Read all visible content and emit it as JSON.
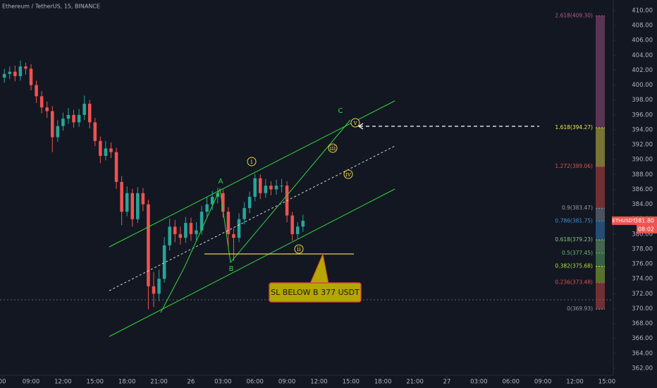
{
  "chart_data": {
    "type": "candlestick",
    "title": "Ethereum / TetherUS, 15, BINANCE",
    "up_color": "#26a69a",
    "down_color": "#ef5350",
    "grid": false,
    "xlim": [
      6.09,
      63.6
    ],
    "ylim": [
      361.05,
      411.42
    ],
    "xticks": [
      {
        "value": 6.3,
        "label": "00"
      },
      {
        "value": 9,
        "label": "09:00"
      },
      {
        "value": 12,
        "label": "12:00"
      },
      {
        "value": 15,
        "label": "15:00"
      },
      {
        "value": 18,
        "label": "18:00"
      },
      {
        "value": 21,
        "label": "21:00"
      },
      {
        "value": 24,
        "label": "26"
      },
      {
        "value": 27,
        "label": "03:00"
      },
      {
        "value": 30,
        "label": "06:00"
      },
      {
        "value": 33,
        "label": "09:00"
      },
      {
        "value": 36,
        "label": "12:00"
      },
      {
        "value": 39,
        "label": "15:00"
      },
      {
        "value": 42,
        "label": "18:00"
      },
      {
        "value": 45,
        "label": "21:00"
      },
      {
        "value": 48,
        "label": "27"
      },
      {
        "value": 51,
        "label": "03:00"
      },
      {
        "value": 54,
        "label": "06:00"
      },
      {
        "value": 57,
        "label": "09:00"
      },
      {
        "value": 60,
        "label": "12:00"
      },
      {
        "value": 63,
        "label": "15:00"
      }
    ],
    "yticks": [
      {
        "value": 362,
        "label": "362.00"
      },
      {
        "value": 364,
        "label": "364.00"
      },
      {
        "value": 366,
        "label": "366.00"
      },
      {
        "value": 368,
        "label": "368.00"
      },
      {
        "value": 370,
        "label": "370.00"
      },
      {
        "value": 372,
        "label": "372.00"
      },
      {
        "value": 374,
        "label": "374.00"
      },
      {
        "value": 376,
        "label": "376.00"
      },
      {
        "value": 378,
        "label": "378.00"
      },
      {
        "value": 380,
        "label": "380.00"
      },
      {
        "value": 382,
        "label": "382.00"
      },
      {
        "value": 384,
        "label": "384.00"
      },
      {
        "value": 386,
        "label": "386.00"
      },
      {
        "value": 388,
        "label": "388.00"
      },
      {
        "value": 390,
        "label": "390.00"
      },
      {
        "value": 392,
        "label": "392.00"
      },
      {
        "value": 394,
        "label": "394.00"
      },
      {
        "value": 396,
        "label": "396.00"
      },
      {
        "value": 398,
        "label": "398.00"
      },
      {
        "value": 400,
        "label": "400.00"
      },
      {
        "value": 402,
        "label": "402.00"
      },
      {
        "value": 404,
        "label": "404.00"
      },
      {
        "value": 406,
        "label": "406.00"
      },
      {
        "value": 408,
        "label": "408.00"
      },
      {
        "value": 410,
        "label": "410.00"
      }
    ],
    "x": [
      6.5,
      7,
      7.5,
      8,
      8.5,
      9,
      9.5,
      10,
      10.5,
      11,
      11.5,
      12,
      12.5,
      13,
      13.5,
      14,
      14.5,
      15,
      15.5,
      16,
      16.5,
      17,
      17.5,
      18,
      18.5,
      19,
      19.5,
      20,
      20.5,
      21,
      21.5,
      22,
      22.5,
      23,
      23.5,
      24,
      24.5,
      25,
      25.5,
      26,
      26.5,
      27,
      27.5,
      28,
      28.5,
      29,
      29.5,
      30,
      30.5,
      31,
      31.5,
      32,
      32.5,
      33,
      33.5,
      34,
      34.5
    ],
    "open": [
      401.0,
      401.5,
      401.8,
      401.2,
      402.5,
      402.2,
      400.0,
      398.5,
      397.0,
      396.5,
      393.0,
      394.5,
      395.5,
      396.0,
      395.0,
      396.0,
      397.5,
      395.0,
      392.5,
      390.5,
      391.5,
      391.0,
      387.0,
      383.0,
      385.5,
      382.0,
      385.5,
      384.0,
      373.0,
      372.0,
      374.0,
      378.5,
      381.0,
      380.0,
      379.5,
      381.5,
      380.0,
      380.5,
      383.0,
      384.0,
      385.0,
      385.5,
      383.0,
      380.0,
      379.5,
      382.0,
      383.5,
      385.0,
      387.5,
      385.5,
      386.5,
      386.0,
      386.5,
      386.5,
      382.5,
      380.0,
      381.0
    ],
    "high": [
      402.2,
      402.5,
      402.6,
      403.3,
      403.0,
      402.8,
      400.6,
      399.2,
      397.8,
      397.2,
      395.3,
      396.3,
      396.9,
      396.7,
      396.8,
      398.6,
      398.0,
      395.6,
      393.1,
      392.5,
      392.3,
      391.6,
      387.8,
      386.4,
      386.1,
      386.3,
      386.2,
      384.6,
      374.9,
      375.2,
      379.6,
      382.1,
      381.9,
      381.0,
      382.3,
      382.2,
      381.6,
      383.8,
      385.0,
      385.8,
      386.2,
      386.0,
      383.6,
      380.8,
      382.8,
      384.3,
      385.7,
      388.1,
      388.0,
      387.4,
      387.1,
      387.3,
      387.4,
      387.1,
      383.0,
      381.6,
      382.6
    ],
    "low": [
      400.3,
      400.8,
      400.5,
      400.6,
      401.4,
      399.3,
      397.6,
      396.2,
      395.6,
      391.0,
      392.4,
      393.9,
      394.8,
      394.3,
      394.4,
      395.3,
      394.2,
      391.8,
      389.5,
      389.9,
      390.2,
      386.1,
      381.2,
      382.4,
      381.0,
      381.5,
      383.1,
      369.9,
      370.2,
      371.0,
      373.5,
      377.8,
      378.9,
      378.6,
      378.8,
      379.1,
      379.2,
      379.9,
      382.3,
      383.2,
      384.1,
      382.2,
      378.3,
      376.4,
      378.9,
      381.3,
      382.8,
      384.4,
      384.7,
      384.9,
      385.2,
      385.3,
      385.6,
      381.6,
      379.1,
      379.4,
      380.3
    ],
    "close": [
      401.5,
      401.8,
      401.2,
      402.5,
      402.2,
      400.0,
      398.5,
      397.0,
      396.5,
      393.0,
      394.5,
      395.5,
      396.0,
      395.0,
      396.0,
      397.5,
      395.0,
      392.5,
      390.5,
      391.5,
      391.0,
      387.0,
      383.0,
      385.5,
      382.0,
      385.5,
      384.0,
      373.0,
      372.0,
      374.0,
      378.5,
      381.0,
      380.0,
      379.5,
      381.5,
      380.0,
      380.5,
      383.0,
      384.0,
      385.0,
      385.5,
      383.0,
      380.0,
      379.5,
      382.0,
      383.5,
      385.0,
      387.5,
      385.5,
      386.5,
      386.0,
      386.5,
      386.5,
      382.5,
      380.0,
      381.0,
      381.8
    ],
    "fib_levels": [
      {
        "label": "2.618(409.30)",
        "value": 409.3,
        "color": "#b05a8e"
      },
      {
        "label": "1.618(394.27)",
        "value": 394.27,
        "color": "#f2e64b"
      },
      {
        "label": "1.272(389.06)",
        "value": 389.06,
        "color": "#e0504b"
      },
      {
        "label": "0.9(383.47)",
        "value": 383.47,
        "color": "#9598a1"
      },
      {
        "label": "0.786(381.75)",
        "value": 381.75,
        "color": "#3f8fd6"
      },
      {
        "label": "0.618(379.23)",
        "value": 379.23,
        "color": "#81c784"
      },
      {
        "label": "0.5(377.45)",
        "value": 377.45,
        "color": "#66bb6a"
      },
      {
        "label": "0.382(375.68)",
        "value": 375.68,
        "color": "#aee23c"
      },
      {
        "label": "0.236(373.48)",
        "value": 373.48,
        "color": "#e0504b"
      },
      {
        "label": "0(369.93)",
        "value": 369.93,
        "color": "#9598a1"
      }
    ],
    "price_tag": {
      "symbol": "ETHUSDT",
      "last_price": {
        "value": 381.8,
        "label": "381.80"
      },
      "countdown": "08:02",
      "color": "#ef5350"
    },
    "annotations": {
      "waves": [
        "i",
        "ii",
        "iii",
        "iv",
        "v"
      ],
      "corrections": [
        "A",
        "B",
        "C"
      ],
      "stop_loss": "SL BELOW B 377 USDT"
    }
  }
}
